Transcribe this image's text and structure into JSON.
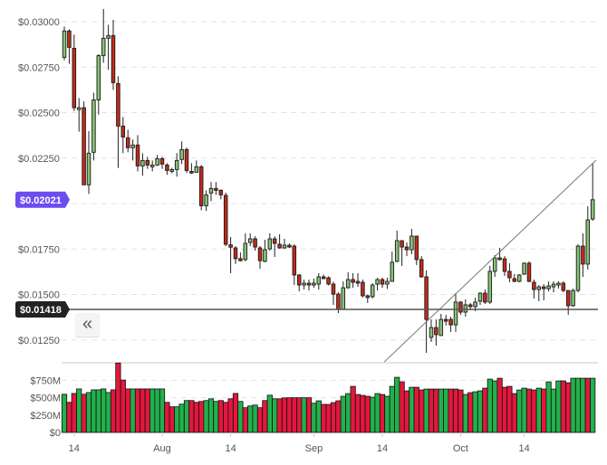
{
  "chart_data": {
    "type": "candlestick",
    "title": "",
    "xlabel": "",
    "ylabel": "",
    "ylim": [
      0.0105,
      0.0312
    ],
    "volume_ylim": [
      0,
      1000
    ],
    "price_ticks": [
      {
        "value": 0.03,
        "label": "$0.03000"
      },
      {
        "value": 0.0275,
        "label": "$0.02750"
      },
      {
        "value": 0.025,
        "label": "$0.02500"
      },
      {
        "value": 0.0225,
        "label": "$0.02250"
      },
      {
        "value": 0.0175,
        "label": "$0.01750"
      },
      {
        "value": 0.015,
        "label": "$0.01500"
      },
      {
        "value": 0.0125,
        "label": "$0.01250"
      }
    ],
    "price_grid": [
      0.03,
      0.0275,
      0.025,
      0.0225,
      0.02,
      0.0175,
      0.015,
      0.0125
    ],
    "volume_ticks": [
      {
        "value": 750,
        "label": "$750M"
      },
      {
        "value": 500,
        "label": "$500M"
      },
      {
        "value": 250,
        "label": "$250M"
      },
      {
        "value": 0,
        "label": "$0"
      }
    ],
    "x_ticks": [
      {
        "index": 3,
        "label": "14"
      },
      {
        "index": 21,
        "label": "Aug"
      },
      {
        "index": 35,
        "label": "14"
      },
      {
        "index": 52,
        "label": "Sep"
      },
      {
        "index": 66,
        "label": "14"
      },
      {
        "index": 82,
        "label": "Oct"
      },
      {
        "index": 95,
        "label": "14"
      }
    ],
    "current_price": {
      "value": 0.02021,
      "label": "$0.02021",
      "color": "#6b4ef0"
    },
    "horizontal_line": {
      "value": 0.01418,
      "label": "$0.01418",
      "color": "#222222"
    },
    "trendline": {
      "start": [
        66.4,
        0.01129
      ],
      "end": [
        109.7,
        0.02239
      ]
    },
    "colors": {
      "up_body": "#86c472",
      "down_body": "#c52a1b",
      "vol_up": "#22b14c",
      "vol_down": "#e3173e"
    },
    "candles_ohlc": [
      [
        0.02804,
        0.02973,
        0.02788,
        0.02949
      ],
      [
        0.02949,
        0.02959,
        0.02768,
        0.02859
      ],
      [
        0.02854,
        0.02929,
        0.02509,
        0.02527
      ],
      [
        0.02517,
        0.0258,
        0.02395,
        0.02527
      ],
      [
        0.02527,
        0.02561,
        0.02103,
        0.02103
      ],
      [
        0.02103,
        0.02398,
        0.02053,
        0.02277
      ],
      [
        0.02282,
        0.0261,
        0.02237,
        0.0257
      ],
      [
        0.0257,
        0.02821,
        0.02489,
        0.02814
      ],
      [
        0.02814,
        0.0307,
        0.02774,
        0.02909
      ],
      [
        0.02909,
        0.02983,
        0.02735,
        0.02924
      ],
      [
        0.02924,
        0.0301,
        0.02625,
        0.02665
      ],
      [
        0.0266,
        0.027,
        0.02196,
        0.02426
      ],
      [
        0.02426,
        0.02476,
        0.02277,
        0.02366
      ],
      [
        0.02362,
        0.02406,
        0.02282,
        0.02307
      ],
      [
        0.02307,
        0.02352,
        0.02237,
        0.02322
      ],
      [
        0.02322,
        0.02376,
        0.02177,
        0.02207
      ],
      [
        0.02207,
        0.02277,
        0.02153,
        0.02237
      ],
      [
        0.02237,
        0.02257,
        0.02191,
        0.02212
      ],
      [
        0.02202,
        0.02237,
        0.02177,
        0.02212
      ],
      [
        0.02212,
        0.02267,
        0.02207,
        0.02247
      ],
      [
        0.02247,
        0.02257,
        0.02191,
        0.02217
      ],
      [
        0.02212,
        0.02222,
        0.02158,
        0.02182
      ],
      [
        0.02177,
        0.02197,
        0.02166,
        0.02187
      ],
      [
        0.02187,
        0.02277,
        0.02148,
        0.02237
      ],
      [
        0.02242,
        0.02342,
        0.02217,
        0.02297
      ],
      [
        0.02297,
        0.02307,
        0.02168,
        0.02182
      ],
      [
        0.02177,
        0.02222,
        0.02163,
        0.02168
      ],
      [
        0.02172,
        0.02237,
        0.02172,
        0.02202
      ],
      [
        0.02202,
        0.02212,
        0.01963,
        0.01988
      ],
      [
        0.01988,
        0.02073,
        0.01959,
        0.02048
      ],
      [
        0.02058,
        0.02118,
        0.02013,
        0.02083
      ],
      [
        0.02083,
        0.02118,
        0.02048,
        0.02073
      ],
      [
        0.02073,
        0.02078,
        0.02023,
        0.02048
      ],
      [
        0.02045,
        0.0206,
        0.01766,
        0.01776
      ],
      [
        0.01773,
        0.01816,
        0.01617,
        0.0176
      ],
      [
        0.01756,
        0.01766,
        0.01667,
        0.01697
      ],
      [
        0.01697,
        0.01731,
        0.01682,
        0.01686
      ],
      [
        0.01692,
        0.01836,
        0.01682,
        0.01781
      ],
      [
        0.01786,
        0.01836,
        0.01766,
        0.01806
      ],
      [
        0.01806,
        0.0182,
        0.01741,
        0.01761
      ],
      [
        0.01756,
        0.01766,
        0.01642,
        0.01686
      ],
      [
        0.01682,
        0.01801,
        0.01677,
        0.01746
      ],
      [
        0.01751,
        0.01836,
        0.01741,
        0.01806
      ],
      [
        0.01806,
        0.0182,
        0.01706,
        0.01781
      ],
      [
        0.01776,
        0.01831,
        0.01751,
        0.01756
      ],
      [
        0.01756,
        0.01806,
        0.01751,
        0.01771
      ],
      [
        0.01771,
        0.0178,
        0.01755,
        0.01761
      ],
      [
        0.01766,
        0.01776,
        0.01552,
        0.01607
      ],
      [
        0.01607,
        0.01612,
        0.01517,
        0.01552
      ],
      [
        0.01552,
        0.01582,
        0.01527,
        0.01562
      ],
      [
        0.01562,
        0.01582,
        0.01522,
        0.01552
      ],
      [
        0.01552,
        0.01587,
        0.01537,
        0.01562
      ],
      [
        0.01557,
        0.01617,
        0.01527,
        0.01597
      ],
      [
        0.01597,
        0.0161,
        0.01585,
        0.01587
      ],
      [
        0.01592,
        0.016,
        0.0155,
        0.01557
      ],
      [
        0.01557,
        0.0157,
        0.01443,
        0.01502
      ],
      [
        0.01502,
        0.01512,
        0.01398,
        0.01418
      ],
      [
        0.01418,
        0.01572,
        0.01418,
        0.01537
      ],
      [
        0.01537,
        0.01622,
        0.01532,
        0.01582
      ],
      [
        0.01582,
        0.01617,
        0.01537,
        0.01567
      ],
      [
        0.01572,
        0.01617,
        0.01542,
        0.01562
      ],
      [
        0.01567,
        0.01582,
        0.01483,
        0.01493
      ],
      [
        0.01493,
        0.015,
        0.01453,
        0.01483
      ],
      [
        0.01488,
        0.01562,
        0.01478,
        0.01552
      ],
      [
        0.01557,
        0.01592,
        0.01522,
        0.01582
      ],
      [
        0.01582,
        0.01592,
        0.01537,
        0.01557
      ],
      [
        0.01557,
        0.01592,
        0.0153,
        0.01572
      ],
      [
        0.01572,
        0.01736,
        0.01572,
        0.01677
      ],
      [
        0.01682,
        0.01851,
        0.01677,
        0.01796
      ],
      [
        0.01796,
        0.01796,
        0.01657,
        0.01761
      ],
      [
        0.01761,
        0.01786,
        0.01711,
        0.01746
      ],
      [
        0.01746,
        0.01861,
        0.01721,
        0.01821
      ],
      [
        0.01821,
        0.01821,
        0.01662,
        0.01692
      ],
      [
        0.01692,
        0.01711,
        0.01592,
        0.01597
      ],
      [
        0.01597,
        0.01632,
        0.01179,
        0.01363
      ],
      [
        0.01264,
        0.01363,
        0.01239,
        0.01318
      ],
      [
        0.01318,
        0.01363,
        0.01219,
        0.01279
      ],
      [
        0.01274,
        0.01393,
        0.01274,
        0.01363
      ],
      [
        0.01363,
        0.01388,
        0.01329,
        0.01353
      ],
      [
        0.01363,
        0.01378,
        0.01294,
        0.01333
      ],
      [
        0.01333,
        0.01507,
        0.01294,
        0.01458
      ],
      [
        0.01458,
        0.01463,
        0.01388,
        0.01403
      ],
      [
        0.01403,
        0.01473,
        0.01378,
        0.01443
      ],
      [
        0.01443,
        0.01453,
        0.01413,
        0.01433
      ],
      [
        0.01433,
        0.01482,
        0.01408,
        0.01458
      ],
      [
        0.01463,
        0.01512,
        0.01443,
        0.01507
      ],
      [
        0.01507,
        0.01527,
        0.01448,
        0.01458
      ],
      [
        0.01458,
        0.01657,
        0.01448,
        0.01627
      ],
      [
        0.01627,
        0.01716,
        0.01597,
        0.01701
      ],
      [
        0.01701,
        0.01756,
        0.01686,
        0.01692
      ],
      [
        0.01696,
        0.01711,
        0.01602,
        0.01627
      ],
      [
        0.01627,
        0.01672,
        0.01567,
        0.01592
      ],
      [
        0.01587,
        0.01612,
        0.01567,
        0.01572
      ],
      [
        0.01572,
        0.01612,
        0.01567,
        0.01607
      ],
      [
        0.01612,
        0.01677,
        0.01607,
        0.01672
      ],
      [
        0.01672,
        0.01682,
        0.01567,
        0.01572
      ],
      [
        0.01567,
        0.01582,
        0.01478,
        0.01527
      ],
      [
        0.01527,
        0.01552,
        0.01463,
        0.01542
      ],
      [
        0.01542,
        0.01557,
        0.01468,
        0.01532
      ],
      [
        0.01532,
        0.01572,
        0.01517,
        0.01547
      ],
      [
        0.01542,
        0.01572,
        0.01512,
        0.01557
      ],
      [
        0.01552,
        0.01572,
        0.01532,
        0.01562
      ],
      [
        0.01562,
        0.01572,
        0.01512,
        0.01522
      ],
      [
        0.01522,
        0.01522,
        0.01388,
        0.01438
      ],
      [
        0.01438,
        0.01532,
        0.01433,
        0.01522
      ],
      [
        0.01522,
        0.01776,
        0.01512,
        0.01766
      ],
      [
        0.01766,
        0.01836,
        0.01597,
        0.01667
      ],
      [
        0.01667,
        0.01985,
        0.01637,
        0.0191
      ],
      [
        0.01915,
        0.02219,
        0.01905,
        0.02021
      ]
    ],
    "volume_millions": [
      549,
      433,
      561,
      626,
      549,
      574,
      613,
      613,
      626,
      574,
      613,
      999,
      754,
      626,
      626,
      626,
      626,
      626,
      626,
      626,
      626,
      433,
      369,
      369,
      407,
      459,
      459,
      433,
      446,
      459,
      484,
      446,
      459,
      433,
      484,
      561,
      446,
      356,
      381,
      394,
      356,
      459,
      536,
      484,
      484,
      497,
      499,
      499,
      499,
      499,
      499,
      420,
      455,
      403,
      403,
      429,
      455,
      520,
      559,
      663,
      546,
      533,
      520,
      507,
      559,
      546,
      520,
      663,
      793,
      728,
      598,
      650,
      650,
      611,
      624,
      624,
      624,
      624,
      624,
      624,
      624,
      611,
      546,
      572,
      585,
      598,
      637,
      767,
      741,
      780,
      650,
      663,
      559,
      611,
      637,
      624,
      611,
      637,
      624,
      728,
      624,
      741,
      741,
      715,
      780,
      780,
      780,
      780,
      780
    ],
    "volume_up": "GRRGRGGGGGRRRRGRRRGGGRRGGGRRRGGGRRRRGRGGRRGGRRRRRGRGGRRRRGGRRRRGGRGGGRRGRRGRRGGRRRGRGGRGGRRRRGGRRGRGGGRRGGGRG",
    "back_button_label": "«"
  }
}
